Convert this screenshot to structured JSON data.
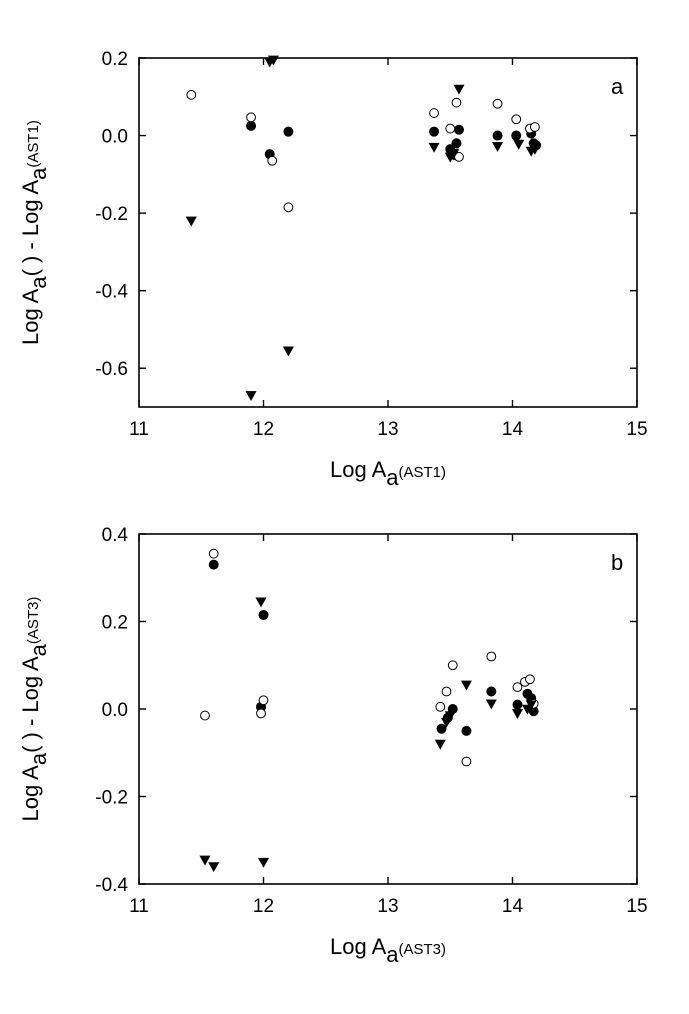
{
  "chart_data": [
    {
      "type": "scatter",
      "panel_label": "a",
      "xlabel": {
        "main": "Log A",
        "sub": "a",
        "tail": "(AST1)"
      },
      "ylabel": {
        "main": "Log A",
        "sub": "a",
        "mid": "( ) - Log A",
        "sub2": "a",
        "tail": "(AST1)"
      },
      "xlim": [
        11,
        15
      ],
      "ylim": [
        -0.7,
        0.2
      ],
      "xticks": [
        11,
        12,
        13,
        14,
        15
      ],
      "yticks": [
        0.2,
        0.0,
        -0.2,
        -0.4,
        -0.6
      ],
      "xtick_labels": [
        "11",
        "12",
        "13",
        "14",
        "15"
      ],
      "ytick_labels": [
        "0.2",
        "0.0",
        "-0.2",
        "-0.4",
        "-0.6"
      ],
      "grid": false,
      "series": [
        {
          "marker": "filled-circle",
          "points": [
            [
              11.9,
              0.025
            ],
            [
              12.05,
              -0.048
            ],
            [
              12.2,
              0.01
            ],
            [
              13.37,
              0.01
            ],
            [
              13.5,
              -0.035
            ],
            [
              13.53,
              -0.05
            ],
            [
              13.55,
              -0.02
            ],
            [
              13.57,
              0.015
            ],
            [
              13.88,
              0.0
            ],
            [
              14.03,
              0.0
            ],
            [
              14.15,
              0.005
            ],
            [
              14.17,
              -0.02
            ],
            [
              14.19,
              -0.025
            ]
          ]
        },
        {
          "marker": "open-circle",
          "points": [
            [
              11.42,
              0.105
            ],
            [
              11.9,
              0.047
            ],
            [
              12.07,
              -0.065
            ],
            [
              12.2,
              -0.185
            ],
            [
              13.37,
              0.058
            ],
            [
              13.5,
              0.018
            ],
            [
              13.55,
              0.085
            ],
            [
              13.57,
              -0.055
            ],
            [
              13.88,
              0.082
            ],
            [
              14.03,
              0.042
            ],
            [
              14.14,
              0.018
            ],
            [
              14.18,
              0.022
            ]
          ]
        },
        {
          "marker": "filled-triangle-down",
          "points": [
            [
              11.42,
              -0.22
            ],
            [
              11.9,
              -0.67
            ],
            [
              12.05,
              0.19
            ],
            [
              12.08,
              0.195
            ],
            [
              12.2,
              -0.555
            ],
            [
              13.37,
              -0.03
            ],
            [
              13.5,
              -0.055
            ],
            [
              13.53,
              -0.045
            ],
            [
              13.57,
              0.12
            ],
            [
              13.88,
              -0.028
            ],
            [
              14.05,
              -0.022
            ],
            [
              14.15,
              -0.04
            ],
            [
              14.18,
              -0.035
            ]
          ]
        }
      ]
    },
    {
      "type": "scatter",
      "panel_label": "b",
      "xlabel": {
        "main": "Log A",
        "sub": "a",
        "tail": "(AST3)"
      },
      "ylabel": {
        "main": "Log A",
        "sub": "a",
        "mid": "( ) - Log A",
        "sub2": "a",
        "tail": "(AST3)"
      },
      "xlim": [
        11,
        15
      ],
      "ylim": [
        -0.4,
        0.4
      ],
      "xticks": [
        11,
        12,
        13,
        14,
        15
      ],
      "yticks": [
        0.4,
        0.2,
        0.0,
        -0.2,
        -0.4
      ],
      "xtick_labels": [
        "11",
        "12",
        "13",
        "14",
        "15"
      ],
      "ytick_labels": [
        "0.4",
        "0.2",
        "0.0",
        "-0.2",
        "-0.4"
      ],
      "grid": false,
      "series": [
        {
          "marker": "filled-circle",
          "points": [
            [
              11.6,
              0.33
            ],
            [
              11.98,
              0.005
            ],
            [
              12.0,
              0.215
            ],
            [
              13.43,
              -0.045
            ],
            [
              13.48,
              -0.02
            ],
            [
              13.52,
              0.0
            ],
            [
              13.63,
              -0.05
            ],
            [
              13.83,
              0.04
            ],
            [
              14.04,
              0.01
            ],
            [
              14.12,
              0.035
            ],
            [
              14.15,
              0.025
            ],
            [
              14.17,
              -0.005
            ]
          ]
        },
        {
          "marker": "open-circle",
          "points": [
            [
              11.53,
              -0.015
            ],
            [
              11.6,
              0.355
            ],
            [
              11.98,
              -0.01
            ],
            [
              12.0,
              0.02
            ],
            [
              13.42,
              0.005
            ],
            [
              13.47,
              0.04
            ],
            [
              13.52,
              0.1
            ],
            [
              13.63,
              -0.12
            ],
            [
              13.83,
              0.12
            ],
            [
              14.04,
              0.05
            ],
            [
              14.1,
              0.062
            ],
            [
              14.14,
              0.068
            ],
            [
              14.17,
              0.012
            ]
          ]
        },
        {
          "marker": "filled-triangle-down",
          "points": [
            [
              11.53,
              -0.345
            ],
            [
              11.6,
              -0.36
            ],
            [
              12.0,
              -0.35
            ],
            [
              11.98,
              0.245
            ],
            [
              13.42,
              -0.08
            ],
            [
              13.47,
              -0.03
            ],
            [
              13.5,
              -0.015
            ],
            [
              13.63,
              0.055
            ],
            [
              13.83,
              0.012
            ],
            [
              14.04,
              -0.01
            ],
            [
              14.12,
              0.0
            ],
            [
              14.15,
              0.01
            ]
          ]
        }
      ]
    }
  ]
}
